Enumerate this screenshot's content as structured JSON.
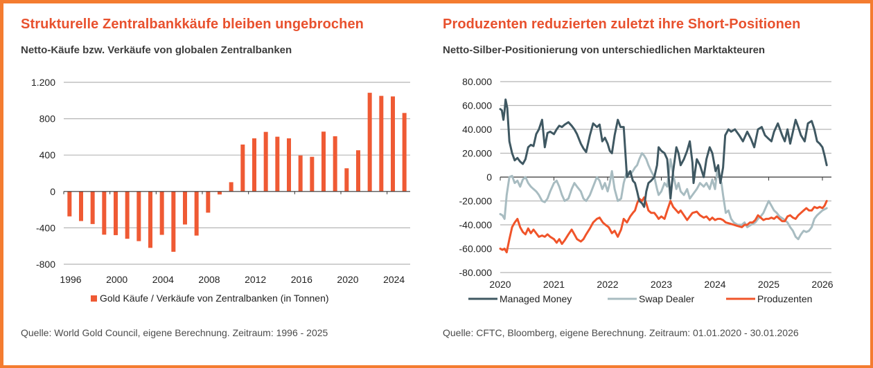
{
  "colors": {
    "frame": "#f47c30",
    "title": "#e8512e",
    "bar": "#ef5a34",
    "managed_money": "#3f5862",
    "swap_dealer": "#a8bcc1",
    "produzenten": "#f0542a",
    "grid": "#b5b5b5",
    "axis": "#333333"
  },
  "left": {
    "title": "Strukturelle Zentralbankkäufe bleiben ungebrochen",
    "subtitle": "Netto-Käufe bzw. Verkäufe von globalen Zentralbanken",
    "source": "Quelle: World Gold Council, eigene Berechnung. Zeitraum: 1996 - 2025"
  },
  "right": {
    "title": "Produzenten reduzierten zuletzt ihre Short-Positionen",
    "subtitle": "Netto-Silber-Positionierung von unterschiedlichen Marktakteuren",
    "source": "Quelle: CFTC, Bloomberg, eigene Berechnung. Zeitraum: 01.01.2020 - 30.01.2026"
  },
  "chart_data": [
    {
      "type": "bar",
      "title": "Strukturelle Zentralbankkäufe bleiben ungebrochen",
      "subtitle": "Netto-Käufe bzw. Verkäufe von globalen Zentralbanken",
      "xlabel": "",
      "ylabel": "",
      "categories": [
        1996,
        1997,
        1998,
        1999,
        2000,
        2001,
        2002,
        2003,
        2004,
        2005,
        2006,
        2007,
        2008,
        2009,
        2010,
        2011,
        2012,
        2013,
        2014,
        2015,
        2016,
        2017,
        2018,
        2019,
        2020,
        2021,
        2022,
        2023,
        2024,
        2025
      ],
      "series": [
        {
          "name": "Gold Käufe / Verkäufe von Zentralbanken (in Tonnen)",
          "values": [
            -274,
            -325,
            -358,
            -475,
            -480,
            -520,
            -546,
            -620,
            -477,
            -663,
            -363,
            -485,
            -233,
            -33,
            102,
            516,
            584,
            655,
            602,
            584,
            396,
            381,
            658,
            607,
            255,
            453,
            1085,
            1051,
            1045,
            863
          ]
        }
      ],
      "ylim": [
        -800,
        1200
      ],
      "yticks": [
        -800,
        -400,
        0,
        400,
        800,
        1200
      ],
      "ytick_labels": [
        "-800",
        "-400",
        "0",
        "400",
        "800",
        "1.200"
      ],
      "xticks": [
        1996,
        2000,
        2004,
        2008,
        2012,
        2016,
        2020,
        2024
      ],
      "xtick_labels": [
        "1996",
        "2000",
        "2004",
        "2008",
        "2012",
        "2016",
        "2020",
        "2024"
      ],
      "grid": true,
      "legend": "bottom"
    },
    {
      "type": "line",
      "title": "Produzenten reduzierten zuletzt ihre Short-Positionen",
      "subtitle": "Netto-Silber-Positionierung von unterschiedlichen Marktakteuren",
      "xlabel": "",
      "ylabel": "",
      "xlim": [
        2020,
        2026.1
      ],
      "ylim": [
        -80000,
        80000
      ],
      "yticks": [
        -80000,
        -60000,
        -40000,
        -20000,
        0,
        20000,
        40000,
        60000,
        80000
      ],
      "ytick_labels": [
        "-80.000",
        "-60.000",
        "-40.000",
        "-20.000",
        "0",
        "20.000",
        "40.000",
        "60.000",
        "80.000"
      ],
      "xticks": [
        2020,
        2021,
        2022,
        2023,
        2024,
        2025,
        2026
      ],
      "xtick_labels": [
        "2020",
        "2021",
        "2022",
        "2023",
        "2024",
        "2025",
        "2026"
      ],
      "grid": true,
      "legend": "bottom",
      "series": [
        {
          "name": "Managed Money",
          "x": [
            2020.0,
            2020.03,
            2020.06,
            2020.08,
            2020.1,
            2020.13,
            2020.17,
            2020.22,
            2020.27,
            2020.32,
            2020.37,
            2020.42,
            2020.47,
            2020.52,
            2020.57,
            2020.62,
            2020.67,
            2020.72,
            2020.78,
            2020.83,
            2020.88,
            2020.93,
            2021.0,
            2021.05,
            2021.1,
            2021.15,
            2021.2,
            2021.27,
            2021.33,
            2021.38,
            2021.43,
            2021.5,
            2021.55,
            2021.6,
            2021.67,
            2021.73,
            2021.8,
            2021.85,
            2021.9,
            2021.95,
            2022.0,
            2022.04,
            2022.08,
            2022.13,
            2022.19,
            2022.24,
            2022.3,
            2022.36,
            2022.42,
            2022.47,
            2022.51,
            2022.55,
            2022.59,
            2022.64,
            2022.68,
            2022.72,
            2022.76,
            2022.81,
            2022.87,
            2022.92,
            2022.95,
            2023.0,
            2023.06,
            2023.11,
            2023.17,
            2023.22,
            2023.28,
            2023.32,
            2023.36,
            2023.42,
            2023.48,
            2023.53,
            2023.58,
            2023.6,
            2023.66,
            2023.72,
            2023.79,
            2023.84,
            2023.9,
            2023.95,
            2024.01,
            2024.06,
            2024.1,
            2024.15,
            2024.19,
            2024.25,
            2024.3,
            2024.37,
            2024.45,
            2024.52,
            2024.6,
            2024.67,
            2024.73,
            2024.8,
            2024.87,
            2024.93,
            2025.0,
            2025.05,
            2025.1,
            2025.17,
            2025.25,
            2025.3,
            2025.35,
            2025.4,
            2025.45,
            2025.5,
            2025.55,
            2025.6,
            2025.67,
            2025.73,
            2025.8,
            2025.85,
            2025.9,
            2025.95,
            2026.0,
            2026.04,
            2026.08
          ],
          "values": [
            57000,
            56000,
            48000,
            55000,
            65000,
            58000,
            30000,
            20000,
            14000,
            16000,
            13000,
            11000,
            15000,
            25000,
            27000,
            26000,
            36000,
            40000,
            48000,
            25000,
            37000,
            38000,
            36000,
            40000,
            43000,
            42000,
            44000,
            46000,
            43000,
            40000,
            36000,
            28000,
            24000,
            21000,
            35000,
            45000,
            42000,
            44000,
            30000,
            33000,
            28000,
            22000,
            20000,
            35000,
            48000,
            42000,
            42000,
            0,
            5000,
            -3000,
            -5000,
            -12000,
            -20000,
            -22000,
            -25000,
            -12000,
            -5000,
            -3000,
            0,
            10000,
            25000,
            22000,
            20000,
            15000,
            -18000,
            5000,
            25000,
            20000,
            10000,
            15000,
            22000,
            30000,
            12000,
            -5000,
            15000,
            10000,
            0,
            15000,
            25000,
            20000,
            5000,
            10000,
            -5000,
            8000,
            35000,
            40000,
            38000,
            40000,
            35000,
            30000,
            38000,
            32000,
            25000,
            40000,
            42000,
            35000,
            32000,
            30000,
            38000,
            45000,
            35000,
            30000,
            40000,
            28000,
            38000,
            48000,
            42000,
            35000,
            30000,
            45000,
            47000,
            40000,
            30000,
            28000,
            25000,
            18000,
            10000
          ]
        },
        {
          "name": "Swap Dealer",
          "x": [
            2020.0,
            2020.04,
            2020.08,
            2020.12,
            2020.17,
            2020.22,
            2020.27,
            2020.32,
            2020.37,
            2020.42,
            2020.47,
            2020.52,
            2020.57,
            2020.62,
            2020.67,
            2020.72,
            2020.78,
            2020.83,
            2020.88,
            2020.93,
            2021.0,
            2021.05,
            2021.1,
            2021.15,
            2021.2,
            2021.27,
            2021.33,
            2021.38,
            2021.43,
            2021.5,
            2021.55,
            2021.6,
            2021.67,
            2021.73,
            2021.8,
            2021.85,
            2021.9,
            2021.95,
            2022.0,
            2022.04,
            2022.08,
            2022.13,
            2022.19,
            2022.25,
            2022.3,
            2022.36,
            2022.42,
            2022.47,
            2022.51,
            2022.55,
            2022.59,
            2022.64,
            2022.68,
            2022.72,
            2022.76,
            2022.81,
            2022.87,
            2022.92,
            2022.95,
            2023.0,
            2023.06,
            2023.11,
            2023.17,
            2023.22,
            2023.28,
            2023.32,
            2023.36,
            2023.42,
            2023.48,
            2023.53,
            2023.58,
            2023.66,
            2023.72,
            2023.79,
            2023.84,
            2023.9,
            2023.95,
            2024.0,
            2024.04,
            2024.08,
            2024.12,
            2024.15,
            2024.2,
            2024.25,
            2024.3,
            2024.35,
            2024.42,
            2024.5,
            2024.55,
            2024.6,
            2024.67,
            2024.75,
            2024.8,
            2024.85,
            2024.9,
            2024.95,
            2025.0,
            2025.05,
            2025.1,
            2025.15,
            2025.2,
            2025.27,
            2025.35,
            2025.4,
            2025.45,
            2025.5,
            2025.55,
            2025.6,
            2025.65,
            2025.7,
            2025.75,
            2025.8,
            2025.85,
            2025.9,
            2025.95,
            2026.0,
            2026.04,
            2026.08
          ],
          "values": [
            -31000,
            -32000,
            -35000,
            -15000,
            0,
            1000,
            -5000,
            -3000,
            -8000,
            -2000,
            0,
            -5000,
            -8000,
            -10000,
            -12000,
            -15000,
            -20000,
            -21000,
            -18000,
            -12000,
            -5000,
            -3000,
            -8000,
            -15000,
            -20000,
            -18000,
            -10000,
            -5000,
            -8000,
            -12000,
            -18000,
            -20000,
            -15000,
            -8000,
            0,
            -3000,
            -10000,
            -5000,
            -12000,
            -5000,
            5000,
            -10000,
            -20000,
            -18000,
            -5000,
            5000,
            2000,
            5000,
            8000,
            10000,
            15000,
            20000,
            18000,
            15000,
            10000,
            5000,
            0,
            -10000,
            -15000,
            -12000,
            -5000,
            -8000,
            15000,
            2000,
            -10000,
            -5000,
            -12000,
            -15000,
            -10000,
            -18000,
            -15000,
            -10000,
            -5000,
            -8000,
            -5000,
            -10000,
            -2000,
            -10000,
            5000,
            0,
            -5000,
            -15000,
            -30000,
            -28000,
            -35000,
            -38000,
            -40000,
            -40000,
            -38000,
            -42000,
            -40000,
            -38000,
            -35000,
            -33000,
            -30000,
            -25000,
            -20000,
            -24000,
            -28000,
            -30000,
            -33000,
            -35000,
            -38000,
            -42000,
            -45000,
            -50000,
            -52000,
            -48000,
            -45000,
            -46000,
            -45000,
            -42000,
            -35000,
            -32000,
            -30000,
            -28000,
            -27000,
            -26000
          ]
        },
        {
          "name": "Produzenten",
          "x": [
            2020.0,
            2020.04,
            2020.08,
            2020.12,
            2020.17,
            2020.22,
            2020.27,
            2020.32,
            2020.37,
            2020.42,
            2020.47,
            2020.52,
            2020.57,
            2020.62,
            2020.67,
            2020.72,
            2020.78,
            2020.83,
            2020.88,
            2020.93,
            2021.0,
            2021.05,
            2021.1,
            2021.15,
            2021.2,
            2021.27,
            2021.33,
            2021.38,
            2021.43,
            2021.5,
            2021.55,
            2021.6,
            2021.67,
            2021.73,
            2021.8,
            2021.85,
            2021.91,
            2021.96,
            2022.02,
            2022.08,
            2022.13,
            2022.19,
            2022.25,
            2022.3,
            2022.36,
            2022.42,
            2022.47,
            2022.51,
            2022.55,
            2022.59,
            2022.64,
            2022.68,
            2022.72,
            2022.76,
            2022.81,
            2022.87,
            2022.92,
            2022.95,
            2023.0,
            2023.06,
            2023.11,
            2023.17,
            2023.22,
            2023.28,
            2023.32,
            2023.36,
            2023.42,
            2023.48,
            2023.53,
            2023.58,
            2023.66,
            2023.72,
            2023.79,
            2023.84,
            2023.9,
            2023.95,
            2024.0,
            2024.05,
            2024.1,
            2024.15,
            2024.2,
            2024.28,
            2024.35,
            2024.42,
            2024.5,
            2024.55,
            2024.6,
            2024.65,
            2024.7,
            2024.75,
            2024.8,
            2024.85,
            2024.9,
            2024.95,
            2025.0,
            2025.05,
            2025.1,
            2025.15,
            2025.2,
            2025.25,
            2025.3,
            2025.35,
            2025.4,
            2025.45,
            2025.5,
            2025.55,
            2025.6,
            2025.65,
            2025.7,
            2025.75,
            2025.8,
            2025.85,
            2025.9,
            2025.95,
            2026.0,
            2026.04,
            2026.08
          ],
          "values": [
            -60000,
            -61000,
            -60000,
            -63000,
            -52000,
            -42000,
            -38000,
            -35000,
            -42000,
            -46000,
            -48000,
            -43000,
            -47000,
            -44000,
            -47000,
            -50000,
            -49000,
            -50000,
            -48000,
            -50000,
            -52000,
            -55000,
            -52000,
            -56000,
            -53000,
            -48000,
            -44000,
            -48000,
            -52000,
            -54000,
            -52000,
            -48000,
            -43000,
            -38000,
            -35000,
            -34000,
            -38000,
            -40000,
            -42000,
            -47000,
            -45000,
            -50000,
            -44000,
            -35000,
            -38000,
            -33000,
            -30000,
            -28000,
            -22000,
            -18000,
            -20000,
            -17000,
            -22000,
            -28000,
            -30000,
            -30000,
            -33000,
            -35000,
            -33000,
            -35000,
            -28000,
            -20000,
            -25000,
            -28000,
            -30000,
            -28000,
            -32000,
            -36000,
            -33000,
            -30000,
            -29000,
            -32000,
            -34000,
            -33000,
            -36000,
            -34000,
            -36000,
            -35000,
            -35000,
            -36000,
            -38000,
            -39000,
            -40000,
            -41000,
            -42000,
            -40000,
            -40000,
            -38000,
            -38000,
            -36000,
            -32000,
            -34000,
            -36000,
            -35000,
            -35000,
            -34000,
            -35000,
            -33000,
            -35000,
            -37000,
            -37000,
            -33000,
            -32000,
            -34000,
            -35000,
            -32000,
            -30000,
            -28000,
            -26000,
            -28000,
            -28000,
            -25000,
            -26000,
            -25000,
            -26000,
            -24000,
            -20000
          ]
        }
      ]
    }
  ]
}
